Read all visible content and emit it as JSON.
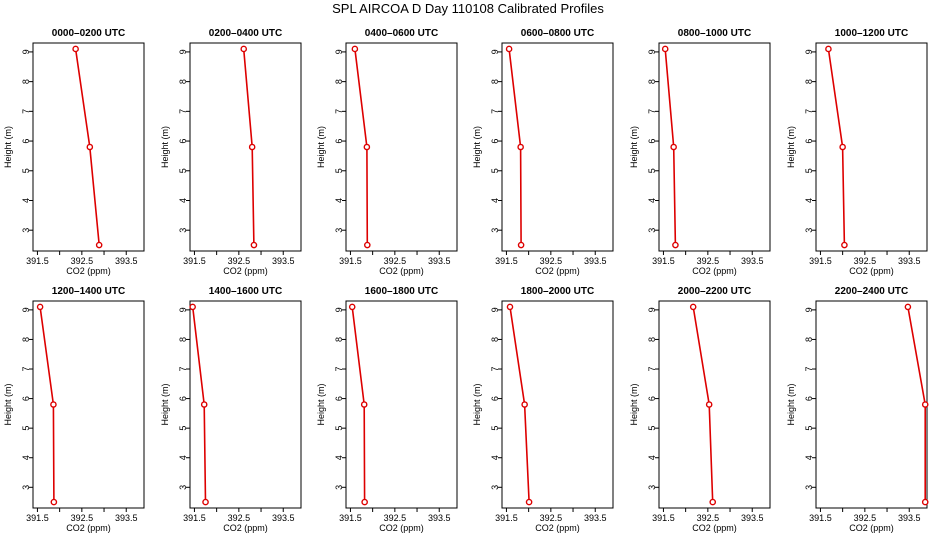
{
  "figure_title": "SPL AIRCOA D  Day 110108  Calibrated Profiles",
  "chart_data": [
    {
      "type": "line",
      "title": "0000–0200 UTC",
      "xlabel": "CO2 (ppm)",
      "ylabel": "Height (m)",
      "xlim": [
        391.4,
        393.9
      ],
      "ylim": [
        2.3,
        9.3
      ],
      "xticks": [
        391.5,
        392.0,
        392.5,
        393.0,
        393.5
      ],
      "xtick_labels": [
        "391.5",
        "",
        "392.5",
        "",
        "393.5"
      ],
      "yticks": [
        3,
        4,
        5,
        6,
        7,
        8,
        9
      ],
      "grid": false,
      "series": [
        {
          "x": [
            392.36,
            392.68,
            392.89
          ],
          "y": [
            9.1,
            5.8,
            2.5
          ]
        }
      ]
    },
    {
      "type": "line",
      "title": "0200–0400 UTC",
      "xlabel": "CO2 (ppm)",
      "ylabel": "Height (m)",
      "xlim": [
        391.4,
        393.9
      ],
      "ylim": [
        2.3,
        9.3
      ],
      "xticks": [
        391.5,
        392.0,
        392.5,
        393.0,
        393.5
      ],
      "xtick_labels": [
        "391.5",
        "",
        "392.5",
        "",
        "393.5"
      ],
      "yticks": [
        3,
        4,
        5,
        6,
        7,
        8,
        9
      ],
      "grid": false,
      "series": [
        {
          "x": [
            392.61,
            392.8,
            392.84
          ],
          "y": [
            9.1,
            5.8,
            2.5
          ]
        }
      ]
    },
    {
      "type": "line",
      "title": "0400–0600 UTC",
      "xlabel": "CO2 (ppm)",
      "ylabel": "Height (m)",
      "xlim": [
        391.4,
        393.9
      ],
      "ylim": [
        2.3,
        9.3
      ],
      "xticks": [
        391.5,
        392.0,
        392.5,
        393.0,
        393.5
      ],
      "xtick_labels": [
        "391.5",
        "",
        "392.5",
        "",
        "393.5"
      ],
      "yticks": [
        3,
        4,
        5,
        6,
        7,
        8,
        9
      ],
      "grid": false,
      "series": [
        {
          "x": [
            391.6,
            391.87,
            391.88
          ],
          "y": [
            9.1,
            5.8,
            2.5
          ]
        }
      ]
    },
    {
      "type": "line",
      "title": "0600–0800 UTC",
      "xlabel": "CO2 (ppm)",
      "ylabel": "Height (m)",
      "xlim": [
        391.4,
        393.9
      ],
      "ylim": [
        2.3,
        9.3
      ],
      "xticks": [
        391.5,
        392.0,
        392.5,
        393.0,
        393.5
      ],
      "xtick_labels": [
        "391.5",
        "",
        "392.5",
        "",
        "393.5"
      ],
      "yticks": [
        3,
        4,
        5,
        6,
        7,
        8,
        9
      ],
      "grid": false,
      "series": [
        {
          "x": [
            391.56,
            391.82,
            391.83
          ],
          "y": [
            9.1,
            5.8,
            2.5
          ]
        }
      ]
    },
    {
      "type": "line",
      "title": "0800–1000 UTC",
      "xlabel": "CO2 (ppm)",
      "ylabel": "Height (m)",
      "xlim": [
        391.4,
        393.9
      ],
      "ylim": [
        2.3,
        9.3
      ],
      "xticks": [
        391.5,
        392.0,
        392.5,
        393.0,
        393.5
      ],
      "xtick_labels": [
        "391.5",
        "",
        "392.5",
        "",
        "393.5"
      ],
      "yticks": [
        3,
        4,
        5,
        6,
        7,
        8,
        9
      ],
      "grid": false,
      "series": [
        {
          "x": [
            391.54,
            391.73,
            391.77
          ],
          "y": [
            9.1,
            5.8,
            2.5
          ]
        }
      ]
    },
    {
      "type": "line",
      "title": "1000–1200 UTC",
      "xlabel": "CO2 (ppm)",
      "ylabel": "Height (m)",
      "xlim": [
        391.4,
        393.9
      ],
      "ylim": [
        2.3,
        9.3
      ],
      "xticks": [
        391.5,
        392.0,
        392.5,
        393.0,
        393.5
      ],
      "xtick_labels": [
        "391.5",
        "",
        "392.5",
        "",
        "393.5"
      ],
      "yticks": [
        3,
        4,
        5,
        6,
        7,
        8,
        9
      ],
      "grid": false,
      "series": [
        {
          "x": [
            391.68,
            392.0,
            392.04
          ],
          "y": [
            9.1,
            5.8,
            2.5
          ]
        }
      ]
    },
    {
      "type": "line",
      "title": "1200–1400 UTC",
      "xlabel": "CO2 (ppm)",
      "ylabel": "Height (m)",
      "xlim": [
        391.4,
        393.9
      ],
      "ylim": [
        2.3,
        9.3
      ],
      "xticks": [
        391.5,
        392.0,
        392.5,
        393.0,
        393.5
      ],
      "xtick_labels": [
        "391.5",
        "",
        "392.5",
        "",
        "393.5"
      ],
      "yticks": [
        3,
        4,
        5,
        6,
        7,
        8,
        9
      ],
      "grid": false,
      "series": [
        {
          "x": [
            391.56,
            391.86,
            391.87
          ],
          "y": [
            9.1,
            5.8,
            2.5
          ]
        }
      ]
    },
    {
      "type": "line",
      "title": "1400–1600 UTC",
      "xlabel": "CO2 (ppm)",
      "ylabel": "Height (m)",
      "xlim": [
        391.4,
        393.9
      ],
      "ylim": [
        2.3,
        9.3
      ],
      "xticks": [
        391.5,
        392.0,
        392.5,
        393.0,
        393.5
      ],
      "xtick_labels": [
        "391.5",
        "",
        "392.5",
        "",
        "393.5"
      ],
      "yticks": [
        3,
        4,
        5,
        6,
        7,
        8,
        9
      ],
      "grid": false,
      "series": [
        {
          "x": [
            391.46,
            391.72,
            391.75
          ],
          "y": [
            9.1,
            5.8,
            2.5
          ]
        }
      ]
    },
    {
      "type": "line",
      "title": "1600–1800 UTC",
      "xlabel": "CO2 (ppm)",
      "ylabel": "Height (m)",
      "xlim": [
        391.4,
        393.9
      ],
      "ylim": [
        2.3,
        9.3
      ],
      "xticks": [
        391.5,
        392.0,
        392.5,
        393.0,
        393.5
      ],
      "xtick_labels": [
        "391.5",
        "",
        "392.5",
        "",
        "393.5"
      ],
      "yticks": [
        3,
        4,
        5,
        6,
        7,
        8,
        9
      ],
      "grid": false,
      "series": [
        {
          "x": [
            391.54,
            391.81,
            391.82
          ],
          "y": [
            9.1,
            5.8,
            2.5
          ]
        }
      ]
    },
    {
      "type": "line",
      "title": "1800–2000 UTC",
      "xlabel": "CO2 (ppm)",
      "ylabel": "Height (m)",
      "xlim": [
        391.4,
        393.9
      ],
      "ylim": [
        2.3,
        9.3
      ],
      "xticks": [
        391.5,
        392.0,
        392.5,
        393.0,
        393.5
      ],
      "xtick_labels": [
        "391.5",
        "",
        "392.5",
        "",
        "393.5"
      ],
      "yticks": [
        3,
        4,
        5,
        6,
        7,
        8,
        9
      ],
      "grid": false,
      "series": [
        {
          "x": [
            391.58,
            391.91,
            392.01
          ],
          "y": [
            9.1,
            5.8,
            2.5
          ]
        }
      ]
    },
    {
      "type": "line",
      "title": "2000–2200 UTC",
      "xlabel": "CO2 (ppm)",
      "ylabel": "Height (m)",
      "xlim": [
        391.4,
        393.9
      ],
      "ylim": [
        2.3,
        9.3
      ],
      "xticks": [
        391.5,
        392.0,
        392.5,
        393.0,
        393.5
      ],
      "xtick_labels": [
        "391.5",
        "",
        "392.5",
        "",
        "393.5"
      ],
      "yticks": [
        3,
        4,
        5,
        6,
        7,
        8,
        9
      ],
      "grid": false,
      "series": [
        {
          "x": [
            392.17,
            392.53,
            392.61
          ],
          "y": [
            9.1,
            5.8,
            2.5
          ]
        }
      ]
    },
    {
      "type": "line",
      "title": "2200–2400 UTC",
      "xlabel": "CO2 (ppm)",
      "ylabel": "Height (m)",
      "xlim": [
        391.4,
        393.9
      ],
      "ylim": [
        2.3,
        9.3
      ],
      "xticks": [
        391.5,
        392.0,
        392.5,
        393.0,
        393.5
      ],
      "xtick_labels": [
        "391.5",
        "",
        "392.5",
        "",
        "393.5"
      ],
      "yticks": [
        3,
        4,
        5,
        6,
        7,
        8,
        9
      ],
      "grid": false,
      "series": [
        {
          "x": [
            393.47,
            393.86,
            393.86
          ],
          "y": [
            9.1,
            5.8,
            2.5
          ]
        }
      ]
    }
  ],
  "colors": {
    "series": "#dd0000",
    "axis": "#000000",
    "background": "#ffffff"
  }
}
